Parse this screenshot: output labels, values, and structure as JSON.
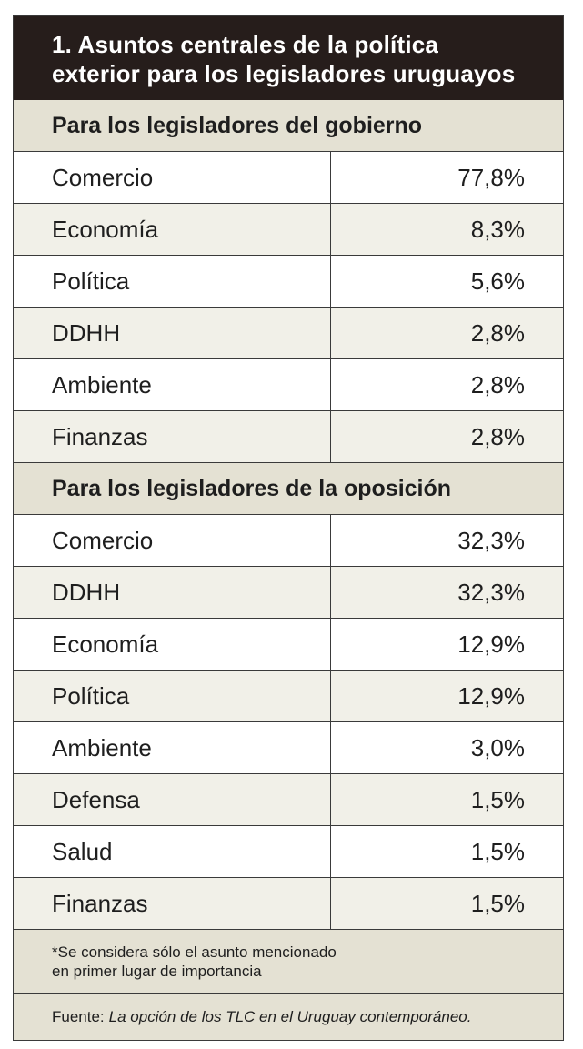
{
  "title": {
    "line1": "1. Asuntos centrales de la política",
    "line2": "exterior para los legisladores uruguayos"
  },
  "chart_data": {
    "type": "table",
    "title": "1. Asuntos centrales de la política exterior para los legisladores uruguayos",
    "unit": "%",
    "groups": [
      {
        "name": "Para los legisladores del gobierno",
        "rows": [
          {
            "label": "Comercio",
            "value": "77,8%"
          },
          {
            "label": "Economía",
            "value": "8,3%"
          },
          {
            "label": "Política",
            "value": "5,6%"
          },
          {
            "label": "DDHH",
            "value": "2,8%"
          },
          {
            "label": "Ambiente",
            "value": "2,8%"
          },
          {
            "label": "Finanzas",
            "value": "2,8%"
          }
        ]
      },
      {
        "name": "Para los legisladores de la oposición",
        "rows": [
          {
            "label": "Comercio",
            "value": "32,3%"
          },
          {
            "label": "DDHH",
            "value": "32,3%"
          },
          {
            "label": "Economía",
            "value": "12,9%"
          },
          {
            "label": "Política",
            "value": "12,9%"
          },
          {
            "label": "Ambiente",
            "value": "3,0%"
          },
          {
            "label": "Defensa",
            "value": "1,5%"
          },
          {
            "label": "Salud",
            "value": "1,5%"
          },
          {
            "label": "Finanzas",
            "value": "1,5%"
          }
        ]
      }
    ]
  },
  "note": {
    "line1": "*Se considera sólo el asunto mencionado",
    "line2": "en primer lugar de importancia"
  },
  "source": {
    "prefix": "Fuente:",
    "title": "La opción de los TLC en el Uruguay contemporáneo."
  },
  "colors": {
    "title_bg": "#261d1b",
    "header_bg": "#e4e1d3",
    "stripe_bg": "#f1f0e8"
  }
}
